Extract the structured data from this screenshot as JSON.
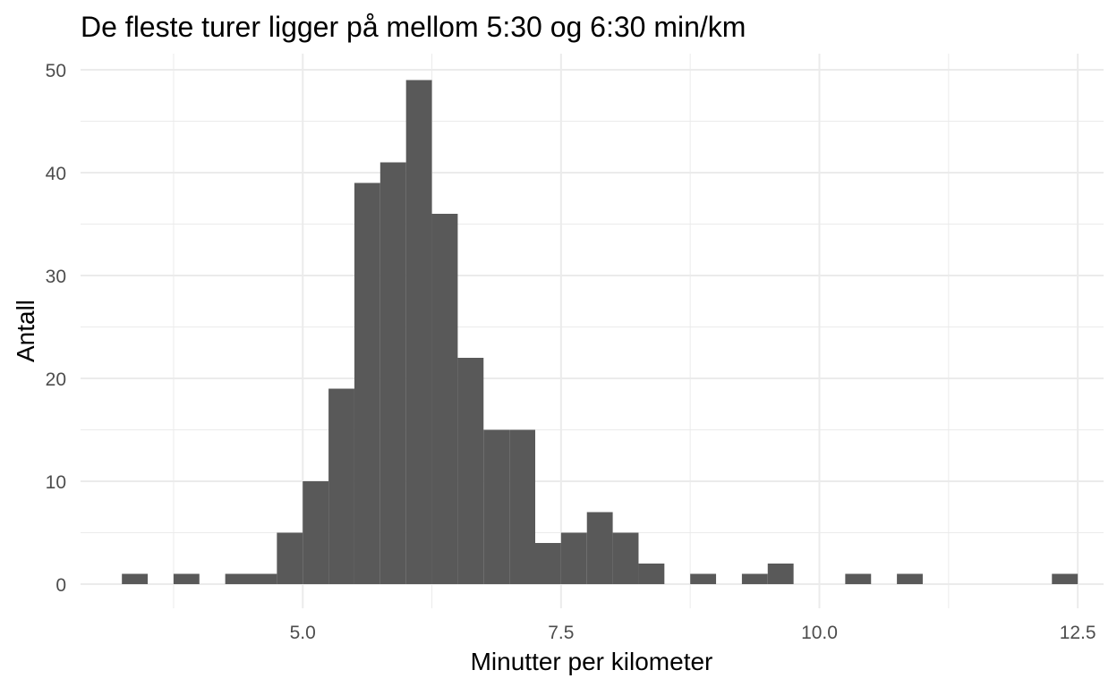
{
  "chart_data": {
    "type": "bar",
    "title": "De fleste turer ligger på mellom 5:30 og 6:30 min/km",
    "xlabel": "Minutter per kilometer",
    "ylabel": "Antall",
    "xlim": [
      2.85,
      12.75
    ],
    "ylim": [
      0,
      50
    ],
    "xticks": [
      5.0,
      7.5,
      10.0,
      12.5
    ],
    "xtick_labels": [
      "5.0",
      "7.5",
      "10.0",
      "12.5"
    ],
    "yticks": [
      0,
      10,
      20,
      30,
      40,
      50
    ],
    "ytick_labels": [
      "0",
      "10",
      "20",
      "30",
      "40",
      "50"
    ],
    "grid": true,
    "bin_width": 0.25,
    "bins": [
      {
        "x": 3.375,
        "count": 1
      },
      {
        "x": 3.875,
        "count": 1
      },
      {
        "x": 4.375,
        "count": 1
      },
      {
        "x": 4.625,
        "count": 1
      },
      {
        "x": 4.875,
        "count": 5
      },
      {
        "x": 5.125,
        "count": 10
      },
      {
        "x": 5.375,
        "count": 19
      },
      {
        "x": 5.625,
        "count": 39
      },
      {
        "x": 5.875,
        "count": 41
      },
      {
        "x": 6.125,
        "count": 49
      },
      {
        "x": 6.375,
        "count": 36
      },
      {
        "x": 6.625,
        "count": 22
      },
      {
        "x": 6.875,
        "count": 15
      },
      {
        "x": 7.125,
        "count": 15
      },
      {
        "x": 7.375,
        "count": 4
      },
      {
        "x": 7.625,
        "count": 5
      },
      {
        "x": 7.875,
        "count": 7
      },
      {
        "x": 8.125,
        "count": 5
      },
      {
        "x": 8.375,
        "count": 2
      },
      {
        "x": 8.875,
        "count": 1
      },
      {
        "x": 9.375,
        "count": 1
      },
      {
        "x": 9.625,
        "count": 2
      },
      {
        "x": 10.375,
        "count": 1
      },
      {
        "x": 10.875,
        "count": 1
      },
      {
        "x": 12.375,
        "count": 1
      }
    ],
    "bar_color": "#595959",
    "grid_color": "#ebebeb"
  }
}
